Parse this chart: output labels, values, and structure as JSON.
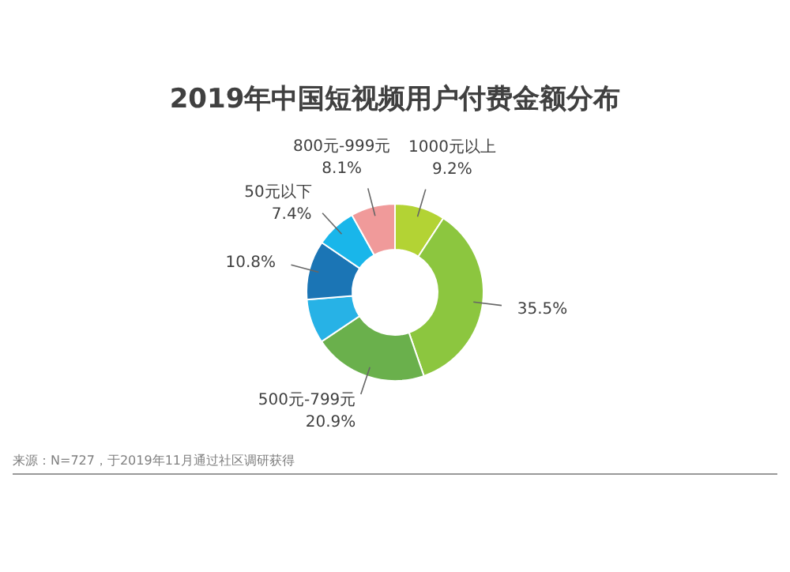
{
  "chart_data": {
    "type": "donut",
    "title": "2019年中国短视频用户付费金额分布",
    "categories": [
      "1000元以上",
      null,
      "500元-799元",
      null,
      null,
      "50元以下",
      "800元-999元"
    ],
    "values": [
      9.2,
      35.5,
      20.9,
      8.1,
      10.8,
      7.4,
      8.1
    ],
    "colors": [
      "#b3d334",
      "#8cc63f",
      "#6ab04c",
      "#27b2e6",
      "#1b75b5",
      "#19b6ea",
      "#f09a9a"
    ],
    "value_labels": [
      "9.2%",
      "35.5%",
      "20.9%",
      null,
      "10.8%",
      "7.4%",
      "8.1%"
    ],
    "annotations": [
      "来源：N=727，于2019年11月通过社区调研获得"
    ]
  }
}
